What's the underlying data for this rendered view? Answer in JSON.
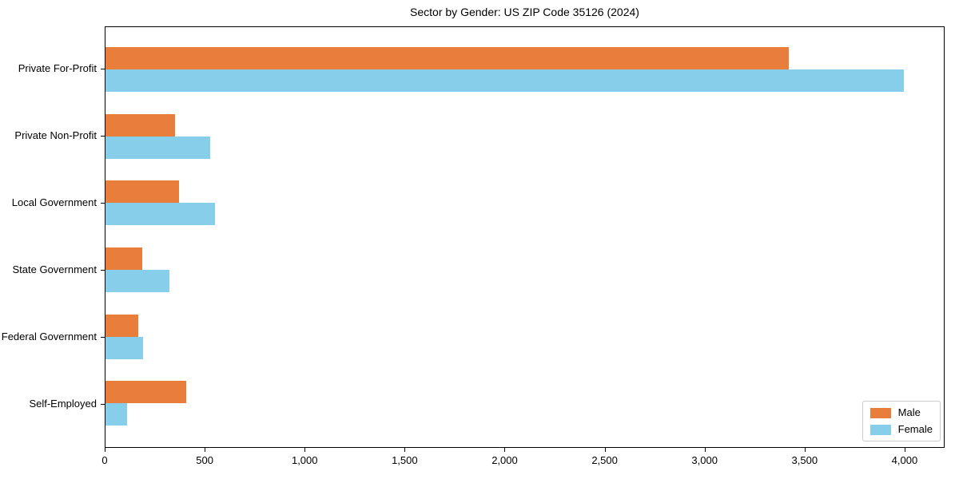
{
  "chart_data": {
    "type": "bar",
    "orientation": "horizontal",
    "title": "Sector by Gender: US ZIP Code 35126 (2024)",
    "categories": [
      "Private For-Profit",
      "Private Non-Profit",
      "Local Government",
      "State Government",
      "Federal Government",
      "Self-Employed"
    ],
    "series": [
      {
        "name": "Male",
        "color": "#e87d3c",
        "values": [
          3425,
          350,
          370,
          185,
          165,
          405
        ]
      },
      {
        "name": "Female",
        "color": "#87ceeb",
        "values": [
          4000,
          525,
          550,
          320,
          190,
          110
        ]
      }
    ],
    "xlabel": "",
    "ylabel": "",
    "xlim": [
      0,
      4200
    ],
    "x_ticks": [
      0,
      500,
      1000,
      1500,
      2000,
      2500,
      3000,
      3500,
      4000
    ],
    "x_tick_labels": [
      "0",
      "500",
      "1,000",
      "1,500",
      "2,000",
      "2,500",
      "3,000",
      "3,500",
      "4,000"
    ],
    "grid": false,
    "legend_position": "lower right"
  },
  "legend": {
    "items": [
      {
        "label": "Male",
        "color": "#e87d3c"
      },
      {
        "label": "Female",
        "color": "#87ceeb"
      }
    ]
  },
  "colors": {
    "male": "#e87d3c",
    "female": "#87ceeb",
    "axis": "#000000",
    "legend_border": "#cccccc",
    "background": "#ffffff"
  }
}
